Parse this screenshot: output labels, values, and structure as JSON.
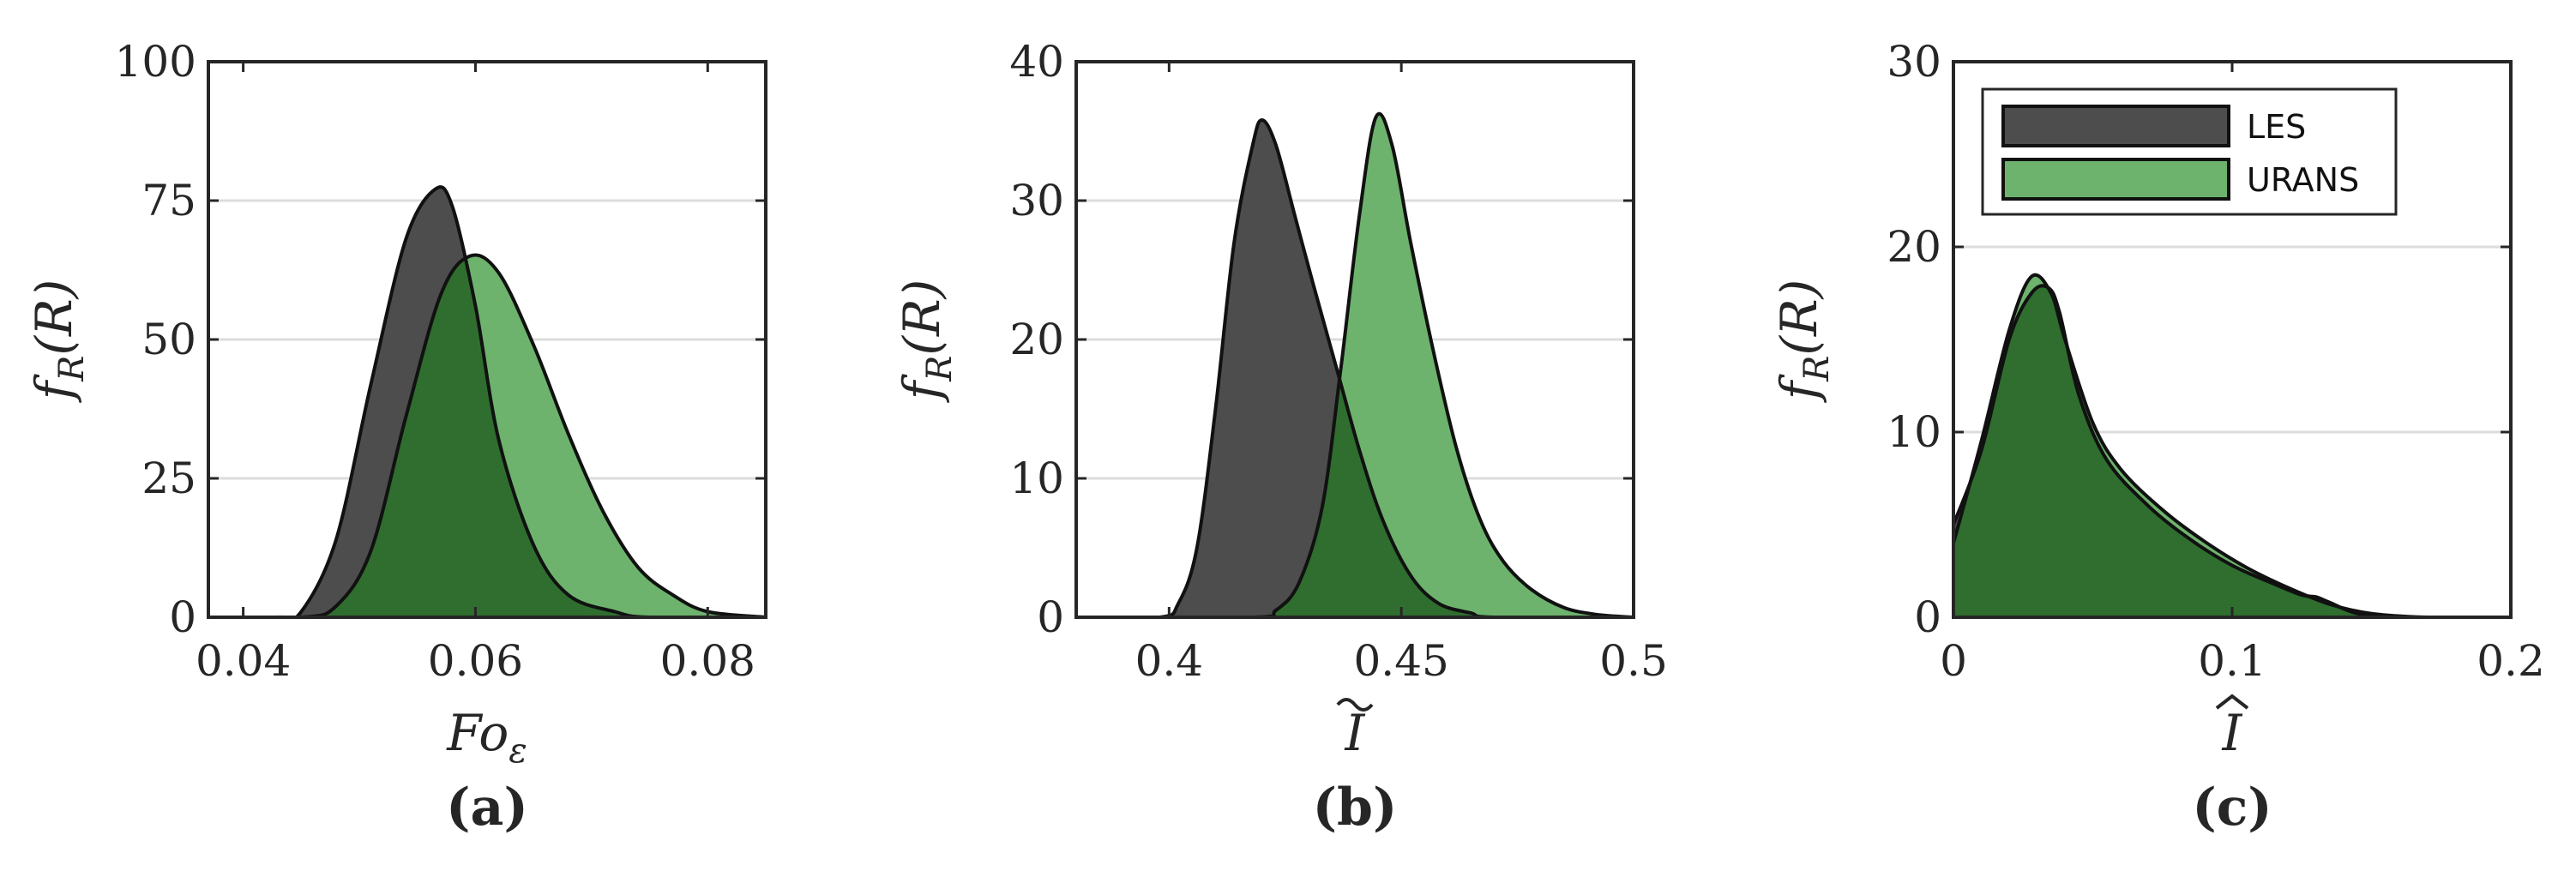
{
  "colors": {
    "les": "#4d4d4d",
    "urans": "#6db36d",
    "overlap": "#2f6e2f"
  },
  "legend": {
    "entries": [
      "LES",
      "URANS"
    ],
    "location": "top-right (panel c)"
  },
  "chart_data": [
    {
      "type": "area",
      "panel_label": "(a)",
      "xlabel": "Fo_ε",
      "ylabel": "f_R(R)",
      "xlim": [
        0.037,
        0.085
      ],
      "ylim": [
        0,
        100
      ],
      "xticks": [
        "0.04",
        "0.06",
        "0.08"
      ],
      "xtick_values": [
        0.04,
        0.06,
        0.08
      ],
      "yticks": [
        "0",
        "25",
        "50",
        "75",
        "100"
      ],
      "ytick_values": [
        0,
        25,
        50,
        75,
        100
      ],
      "grid": "horizontal",
      "series": [
        {
          "name": "LES",
          "x": [
            0.037,
            0.043,
            0.045,
            0.048,
            0.051,
            0.054,
            0.0565,
            0.058,
            0.06,
            0.062,
            0.065,
            0.068,
            0.072,
            0.075,
            0.085
          ],
          "y": [
            0,
            0,
            1,
            14,
            42,
            68,
            77,
            74,
            56,
            32,
            13,
            4,
            1,
            0,
            0
          ]
        },
        {
          "name": "URANS",
          "x": [
            0.037,
            0.045,
            0.048,
            0.051,
            0.054,
            0.057,
            0.0595,
            0.062,
            0.065,
            0.068,
            0.071,
            0.074,
            0.077,
            0.08,
            0.085
          ],
          "y": [
            0,
            0,
            2,
            12,
            36,
            58,
            65,
            62,
            49,
            33,
            19,
            9,
            4,
            1,
            0
          ]
        }
      ]
    },
    {
      "type": "area",
      "panel_label": "(b)",
      "xlabel": "Ĩ",
      "ylabel": "f_R(R)",
      "xlim": [
        0.38,
        0.5
      ],
      "ylim": [
        0,
        40
      ],
      "xticks": [
        "0.4",
        "0.45",
        "0.5"
      ],
      "xtick_values": [
        0.4,
        0.45,
        0.5
      ],
      "yticks": [
        "0",
        "10",
        "20",
        "30",
        "40"
      ],
      "ytick_values": [
        0,
        10,
        20,
        30,
        40
      ],
      "grid": "horizontal",
      "series": [
        {
          "name": "LES",
          "x": [
            0.38,
            0.398,
            0.402,
            0.406,
            0.41,
            0.414,
            0.418,
            0.42,
            0.423,
            0.427,
            0.431,
            0.436,
            0.441,
            0.446,
            0.452,
            0.458,
            0.465,
            0.47,
            0.5
          ],
          "y": [
            0,
            0,
            1,
            5,
            15,
            27,
            34,
            35.8,
            34,
            29,
            24,
            18,
            12,
            7,
            3,
            1,
            0.3,
            0,
            0
          ]
        },
        {
          "name": "URANS",
          "x": [
            0.38,
            0.418,
            0.423,
            0.428,
            0.433,
            0.437,
            0.441,
            0.4445,
            0.448,
            0.452,
            0.457,
            0.462,
            0.467,
            0.472,
            0.478,
            0.485,
            0.492,
            0.5
          ],
          "y": [
            0,
            0,
            0.5,
            2.5,
            8,
            18,
            29,
            36,
            34,
            27,
            19,
            12,
            7,
            4,
            2,
            0.7,
            0.2,
            0
          ]
        }
      ]
    },
    {
      "type": "area",
      "panel_label": "(c)",
      "xlabel": "Î",
      "ylabel": "f_R(R)",
      "xlim": [
        0,
        0.2
      ],
      "ylim": [
        0,
        30
      ],
      "xticks": [
        "0",
        "0.1",
        "0.2"
      ],
      "xtick_values": [
        0,
        0.1,
        0.2
      ],
      "yticks": [
        "0",
        "10",
        "20",
        "30"
      ],
      "ytick_values": [
        0,
        10,
        20,
        30
      ],
      "grid": "horizontal",
      "series": [
        {
          "name": "LES",
          "x": [
            0,
            0.01,
            0.02,
            0.028,
            0.034,
            0.038,
            0.045,
            0.055,
            0.07,
            0.085,
            0.1,
            0.115,
            0.125,
            0.13,
            0.135,
            0.145,
            0.16,
            0.2
          ],
          "y": [
            5,
            9,
            15,
            17.5,
            17.8,
            16.5,
            12,
            8.5,
            6,
            4.2,
            2.8,
            1.8,
            1.2,
            1.1,
            0.8,
            0.2,
            0,
            0
          ]
        },
        {
          "name": "URANS",
          "x": [
            0,
            0.01,
            0.02,
            0.028,
            0.035,
            0.04,
            0.05,
            0.06,
            0.075,
            0.09,
            0.105,
            0.12,
            0.135,
            0.15,
            0.17,
            0.2
          ],
          "y": [
            4,
            9.5,
            15.5,
            18.4,
            17.5,
            15,
            10.5,
            8,
            5.8,
            4.1,
            2.7,
            1.6,
            0.7,
            0.2,
            0,
            0
          ]
        }
      ]
    }
  ]
}
